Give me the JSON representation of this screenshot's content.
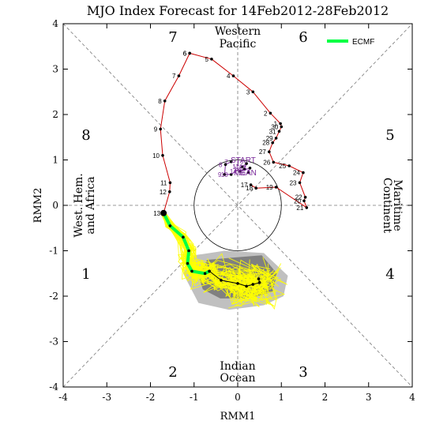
{
  "chart_data": {
    "type": "scatter",
    "title": "MJO Index Forecast for 14Feb2012-28Feb2012",
    "xlabel": "RMM1",
    "ylabel": "RMM2",
    "xlim": [
      -4,
      4
    ],
    "ylim": [
      -4,
      4
    ],
    "xticks": [
      "-4",
      "-3",
      "-2",
      "-1",
      "0",
      "1",
      "2",
      "3",
      "4"
    ],
    "yticks": [
      "-4",
      "-3",
      "-2",
      "-1",
      "0",
      "1",
      "2",
      "3",
      "4"
    ],
    "phase_numbers": [
      {
        "label": "1",
        "x": -3.4,
        "y": -1.55
      },
      {
        "label": "2",
        "x": -1.45,
        "y": -3.65
      },
      {
        "label": "3",
        "x": 1.45,
        "y": -3.65
      },
      {
        "label": "4",
        "x": 3.4,
        "y": -1.55
      },
      {
        "label": "5",
        "x": 3.4,
        "y": 1.55
      },
      {
        "label": "6",
        "x": 1.45,
        "y": 3.65
      },
      {
        "label": "7",
        "x": -1.45,
        "y": 3.65
      },
      {
        "label": "8",
        "x": -3.4,
        "y": 1.55
      }
    ],
    "region_labels": [
      {
        "name": "western_pacific",
        "lines": [
          "Western",
          "Pacific"
        ]
      },
      {
        "name": "indian_ocean",
        "lines": [
          "Indian",
          "Ocean"
        ]
      },
      {
        "name": "west_hem_africa",
        "lines": [
          "West. Hem.",
          "and Africa"
        ]
      },
      {
        "name": "maritime_continent",
        "lines": [
          "Maritime",
          "Continent"
        ]
      }
    ],
    "center_labels": [
      "START",
      "MEAN"
    ],
    "legend": {
      "label": "ECMF",
      "color": "#00ff44",
      "position": "top-right"
    },
    "series": [
      {
        "name": "observed_dec_jan",
        "color": "#cc0000",
        "points": [
          {
            "x": -1.1,
            "y": 3.35,
            "label": "6"
          },
          {
            "x": -0.6,
            "y": 3.22,
            "label": "5"
          },
          {
            "x": -0.1,
            "y": 2.85,
            "label": "4"
          },
          {
            "x": 0.35,
            "y": 2.5,
            "label": "3"
          },
          {
            "x": 0.75,
            "y": 2.03,
            "label": "2"
          },
          {
            "x": 0.98,
            "y": 1.8,
            "label": "1"
          },
          {
            "x": 1.0,
            "y": 1.73,
            "label": "30"
          },
          {
            "x": 0.95,
            "y": 1.63,
            "label": "31"
          },
          {
            "x": 0.88,
            "y": 1.48,
            "label": "29"
          },
          {
            "x": 0.8,
            "y": 1.38,
            "label": "28"
          },
          {
            "x": 0.72,
            "y": 1.18,
            "label": "27"
          },
          {
            "x": 0.82,
            "y": 0.95,
            "label": "26"
          },
          {
            "x": 1.18,
            "y": 0.87,
            "label": "25"
          },
          {
            "x": 1.5,
            "y": 0.72,
            "label": "24"
          },
          {
            "x": 1.42,
            "y": 0.5,
            "label": "23"
          },
          {
            "x": 1.55,
            "y": 0.18,
            "label": "22"
          },
          {
            "x": 1.52,
            "y": 0.1,
            "label": "20"
          },
          {
            "x": 1.58,
            "y": -0.05,
            "label": "21"
          },
          {
            "x": 0.88,
            "y": 0.4,
            "label": "19"
          },
          {
            "x": 0.42,
            "y": 0.38,
            "label": "18"
          },
          {
            "x": 0.3,
            "y": 0.45,
            "label": "17"
          }
        ]
      },
      {
        "name": "observed_jan_feb",
        "color": "#cc0000",
        "points": [
          {
            "x": -1.1,
            "y": 3.35,
            "label": "6"
          },
          {
            "x": -1.35,
            "y": 2.85,
            "label": "7"
          },
          {
            "x": -1.67,
            "y": 2.3,
            "label": "8"
          },
          {
            "x": -1.77,
            "y": 1.68,
            "label": "9"
          },
          {
            "x": -1.72,
            "y": 1.1,
            "label": "10"
          },
          {
            "x": -1.55,
            "y": 0.5,
            "label": "11"
          },
          {
            "x": -1.56,
            "y": 0.3,
            "label": "12"
          },
          {
            "x": -1.7,
            "y": -0.17,
            "label": "13"
          }
        ]
      },
      {
        "name": "mean_start_cluster",
        "color": "#7a2a9a",
        "points": [
          {
            "x": -0.15,
            "y": 0.96,
            "label": "7"
          },
          {
            "x": -0.28,
            "y": 0.9,
            "label": "8"
          },
          {
            "x": -0.3,
            "y": 0.68,
            "label": "9"
          },
          {
            "x": -0.15,
            "y": 0.68,
            "label": "10"
          },
          {
            "x": 0.1,
            "y": 0.85,
            "label": "11"
          },
          {
            "x": 0.2,
            "y": 0.92,
            "label": "12"
          },
          {
            "x": 0.15,
            "y": 0.8,
            "label": "13"
          },
          {
            "x": 0.05,
            "y": 0.75,
            "label": "14"
          },
          {
            "x": 0.28,
            "y": 0.82,
            "label": "15"
          },
          {
            "x": 0.25,
            "y": 0.72,
            "label": "16"
          }
        ]
      },
      {
        "name": "ECMF",
        "color": "#00ff44",
        "points": [
          {
            "x": -1.7,
            "y": -0.17
          },
          {
            "x": -1.55,
            "y": -0.45
          },
          {
            "x": -1.25,
            "y": -0.7
          },
          {
            "x": -1.12,
            "y": -1.0
          },
          {
            "x": -1.15,
            "y": -1.28
          },
          {
            "x": -1.05,
            "y": -1.45
          },
          {
            "x": -0.75,
            "y": -1.5
          },
          {
            "x": -0.65,
            "y": -1.45
          }
        ]
      },
      {
        "name": "ensemble_mean",
        "color": "#000000",
        "points": [
          {
            "x": -0.65,
            "y": -1.45
          },
          {
            "x": -0.38,
            "y": -1.65
          },
          {
            "x": 0.0,
            "y": -1.72
          },
          {
            "x": 0.2,
            "y": -1.78
          },
          {
            "x": 0.35,
            "y": -1.74
          },
          {
            "x": 0.5,
            "y": -1.7
          },
          {
            "x": 0.48,
            "y": -1.62
          }
        ]
      }
    ],
    "spread_shading": {
      "outer_color": "#c0c0c0",
      "inner_color": "#808080",
      "outer": [
        [
          -1.25,
          -1.5
        ],
        [
          -1.0,
          -1.1
        ],
        [
          -0.3,
          -1.0
        ],
        [
          0.6,
          -1.05
        ],
        [
          1.15,
          -1.55
        ],
        [
          1.05,
          -2.0
        ],
        [
          0.6,
          -2.2
        ],
        [
          -0.2,
          -2.3
        ],
        [
          -0.9,
          -2.15
        ]
      ],
      "inner": [
        [
          -0.9,
          -1.55
        ],
        [
          -0.7,
          -1.2
        ],
        [
          -0.1,
          -1.15
        ],
        [
          0.55,
          -1.1
        ],
        [
          0.9,
          -1.5
        ],
        [
          0.8,
          -1.9
        ],
        [
          0.3,
          -2.05
        ],
        [
          -0.4,
          -2.05
        ],
        [
          -0.8,
          -1.85
        ]
      ]
    }
  }
}
